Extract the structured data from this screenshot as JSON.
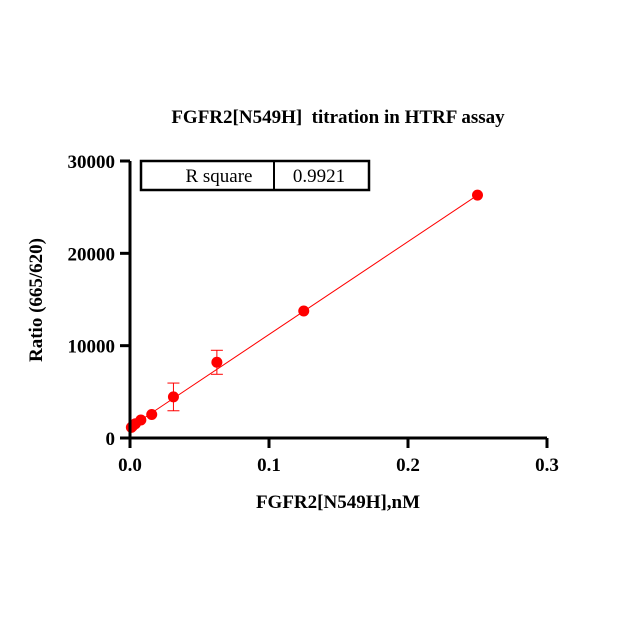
{
  "chart_data": {
    "type": "scatter",
    "title": "FGFR2[N549H]  titration in HTRF assay",
    "xlabel": "FGFR2[N549H],nM",
    "ylabel": "Ratio (665/620)",
    "xlim": [
      0,
      0.3
    ],
    "ylim": [
      0,
      30000
    ],
    "x_ticks": [
      0,
      0.1,
      0.2,
      0.3
    ],
    "x_tick_labels": [
      "0.0",
      "0.1",
      "0.2",
      "0.3"
    ],
    "y_ticks": [
      0,
      10000,
      20000,
      30000
    ],
    "y_tick_labels": [
      "0",
      "10000",
      "20000",
      "30000"
    ],
    "grid": false,
    "series": [
      {
        "color": "#ff0000",
        "x": [
          0.000977,
          0.001953,
          0.003906,
          0.007813,
          0.015625,
          0.03125,
          0.0625,
          0.125,
          0.25
        ],
        "y": [
          1150,
          1300,
          1550,
          1950,
          2550,
          4450,
          8200,
          13750,
          26300
        ],
        "y_error": [
          80,
          80,
          100,
          150,
          250,
          1500,
          1300,
          150,
          150
        ]
      }
    ],
    "fit_line": {
      "color": "#ff0000",
      "x": [
        0,
        0.25
      ],
      "y": [
        1150,
        26300
      ]
    },
    "annotation_table": {
      "label": "R square",
      "value": "0.9921"
    }
  }
}
